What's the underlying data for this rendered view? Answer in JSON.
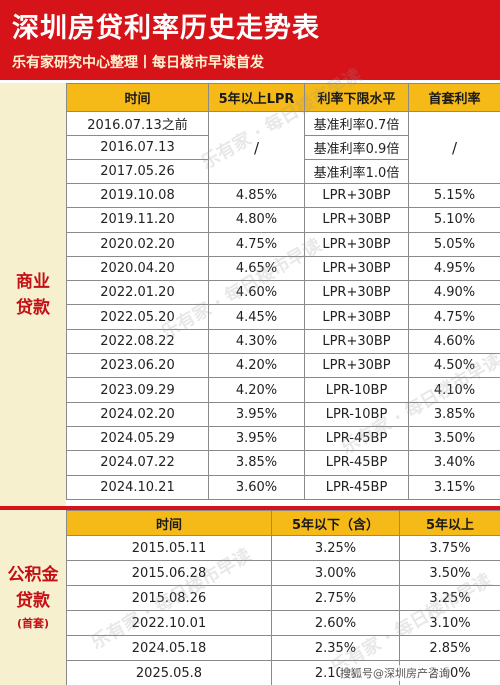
{
  "header": {
    "title": "深圳房贷利率历史走势表",
    "subtitle": "乐有家研究中心整理丨每日楼市早读首发"
  },
  "commercial": {
    "label_line1": "商业",
    "label_line2": "贷款",
    "columns": [
      "时间",
      "5年以上LPR",
      "利率下限水平",
      "首套利率"
    ],
    "merged_lpr": "/",
    "merged_first": "/",
    "early_rows": [
      {
        "date": "2016.07.13之前",
        "floor": "基准利率0.7倍"
      },
      {
        "date": "2016.07.13",
        "floor": "基准利率0.9倍"
      },
      {
        "date": "2017.05.26",
        "floor": "基准利率1.0倍"
      }
    ],
    "rows": [
      {
        "date": "2019.10.08",
        "lpr": "4.85%",
        "floor": "LPR+30BP",
        "first": "5.15%"
      },
      {
        "date": "2019.11.20",
        "lpr": "4.80%",
        "floor": "LPR+30BP",
        "first": "5.10%"
      },
      {
        "date": "2020.02.20",
        "lpr": "4.75%",
        "floor": "LPR+30BP",
        "first": "5.05%"
      },
      {
        "date": "2020.04.20",
        "lpr": "4.65%",
        "floor": "LPR+30BP",
        "first": "4.95%"
      },
      {
        "date": "2022.01.20",
        "lpr": "4.60%",
        "floor": "LPR+30BP",
        "first": "4.90%"
      },
      {
        "date": "2022.05.20",
        "lpr": "4.45%",
        "floor": "LPR+30BP",
        "first": "4.75%"
      },
      {
        "date": "2022.08.22",
        "lpr": "4.30%",
        "floor": "LPR+30BP",
        "first": "4.60%"
      },
      {
        "date": "2023.06.20",
        "lpr": "4.20%",
        "floor": "LPR+30BP",
        "first": "4.50%"
      },
      {
        "date": "2023.09.29",
        "lpr": "4.20%",
        "floor": "LPR-10BP",
        "first": "4.10%"
      },
      {
        "date": "2024.02.20",
        "lpr": "3.95%",
        "floor": "LPR-10BP",
        "first": "3.85%"
      },
      {
        "date": "2024.05.29",
        "lpr": "3.95%",
        "floor": "LPR-45BP",
        "first": "3.50%"
      },
      {
        "date": "2024.07.22",
        "lpr": "3.85%",
        "floor": "LPR-45BP",
        "first": "3.40%"
      },
      {
        "date": "2024.10.21",
        "lpr": "3.60%",
        "floor": "LPR-45BP",
        "first": "3.15%"
      }
    ]
  },
  "fund": {
    "label_line1": "公积金",
    "label_line2": "贷款",
    "label_line3": "(首套)",
    "columns": [
      "时间",
      "5年以下（含）",
      "5年以上"
    ],
    "rows": [
      {
        "date": "2015.05.11",
        "under5": "3.25%",
        "over5": "3.75%"
      },
      {
        "date": "2015.06.28",
        "under5": "3.00%",
        "over5": "3.50%"
      },
      {
        "date": "2015.08.26",
        "under5": "2.75%",
        "over5": "3.25%"
      },
      {
        "date": "2022.10.01",
        "under5": "2.60%",
        "over5": "3.10%"
      },
      {
        "date": "2024.05.18",
        "under5": "2.35%",
        "over5": "2.85%"
      },
      {
        "date": "2025.05.8",
        "under5": "2.10%",
        "over5": "2.60%"
      }
    ]
  },
  "watermark": {
    "text": "乐有家 · 每日楼市早读",
    "footer": "搜狐号@深圳房产咨询"
  }
}
